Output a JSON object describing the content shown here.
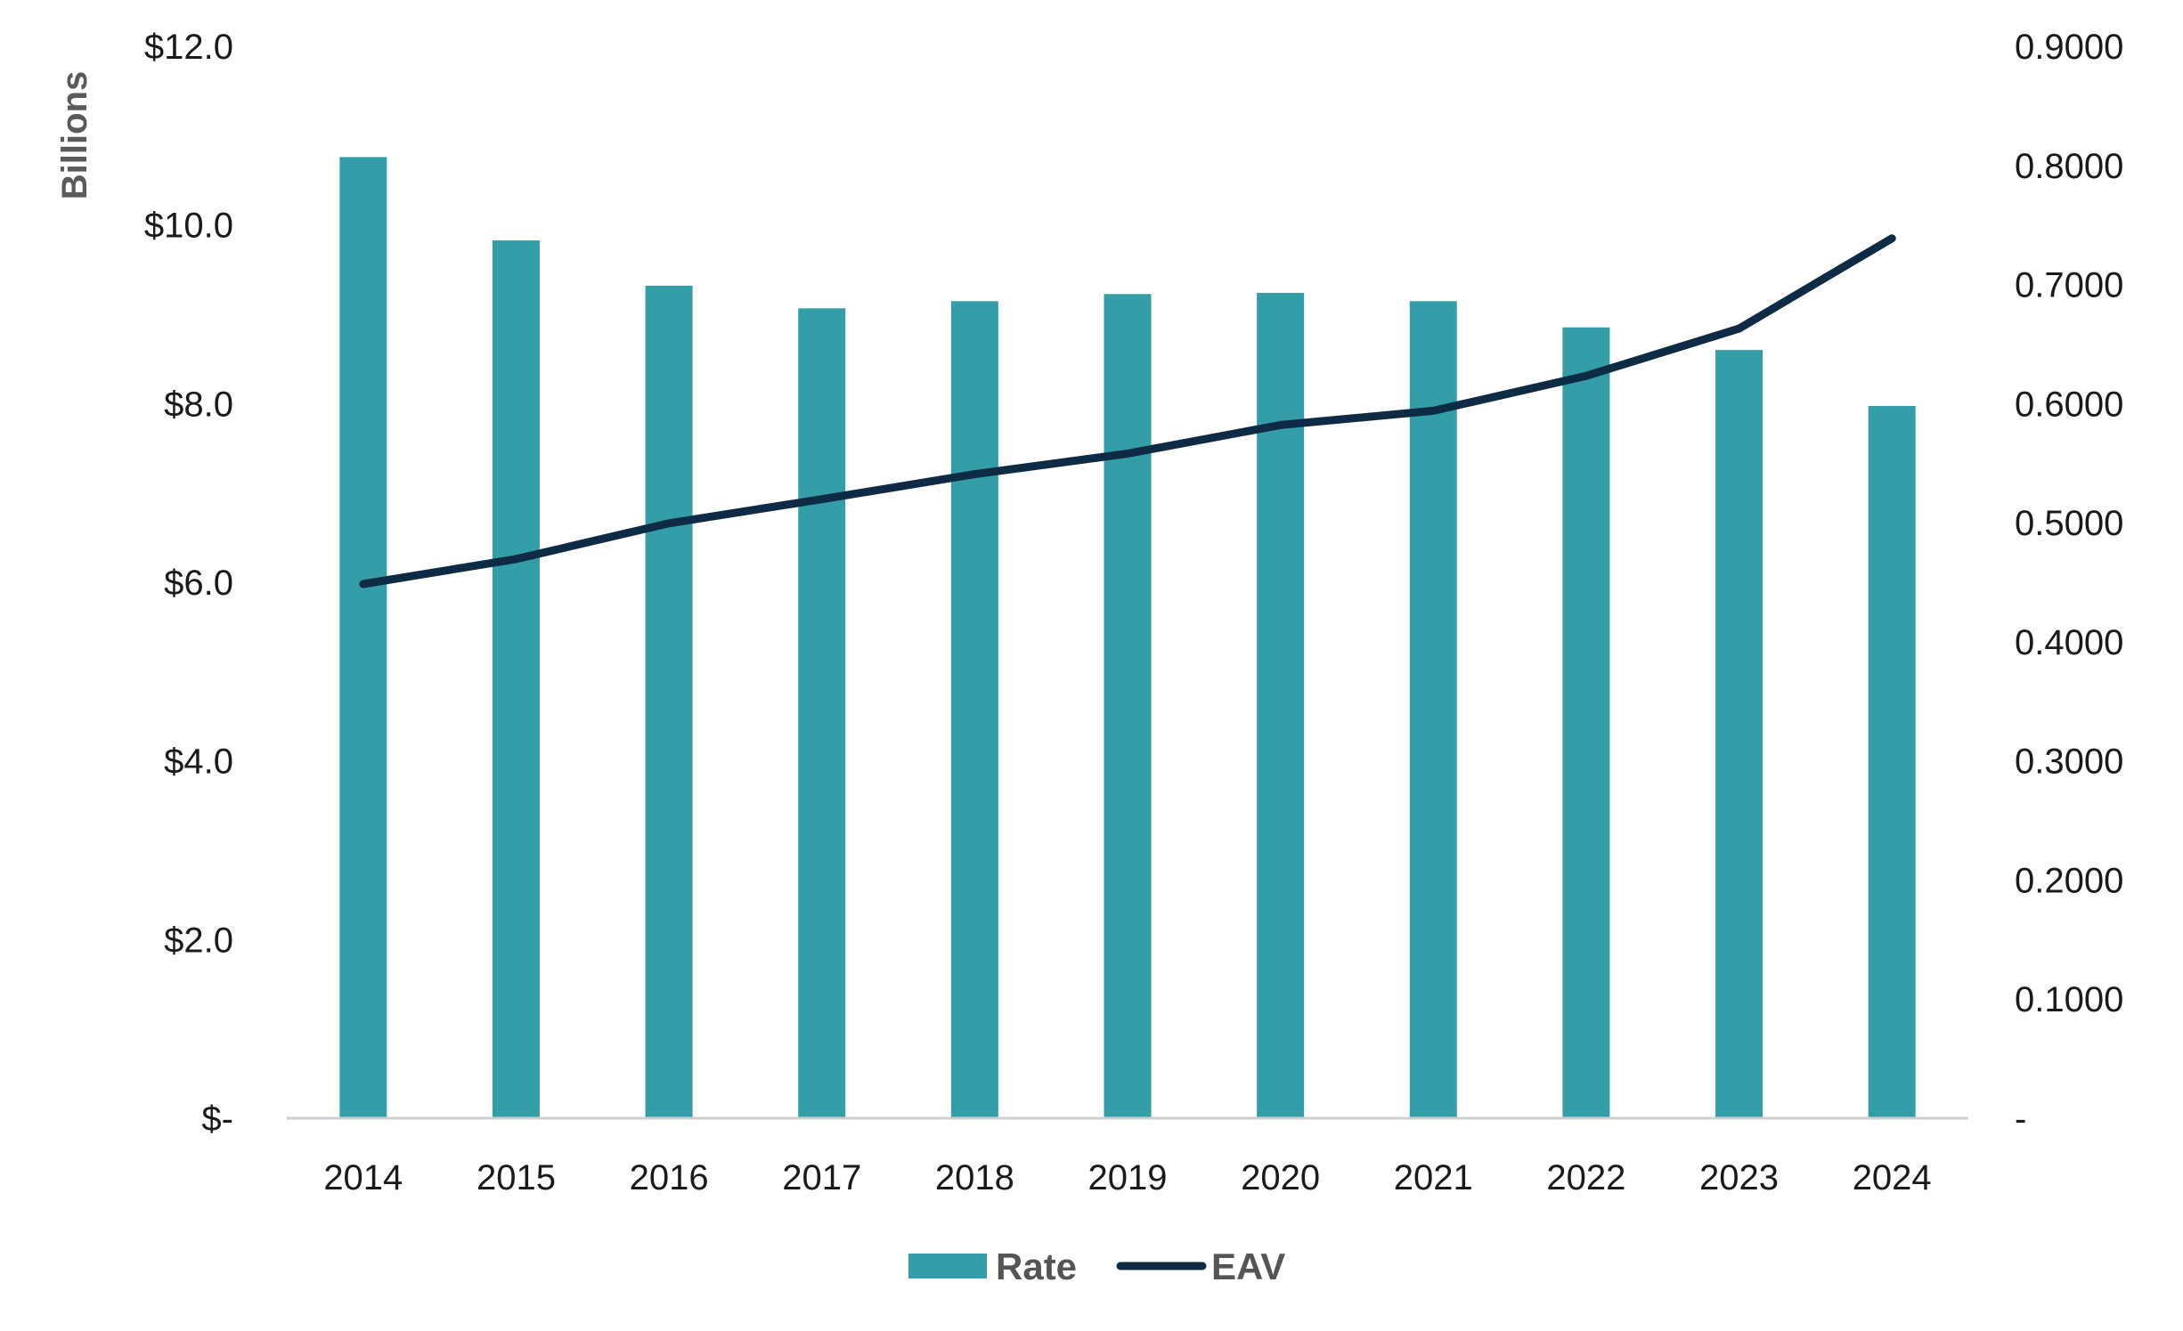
{
  "chart_data": {
    "type": "bar",
    "categories": [
      "2014",
      "2015",
      "2016",
      "2017",
      "2018",
      "2019",
      "2020",
      "2021",
      "2022",
      "2023",
      "2024"
    ],
    "series": [
      {
        "name": "Rate",
        "type": "bar",
        "axis": "right",
        "color": "#349ea8",
        "values": [
          0.807,
          0.737,
          0.699,
          0.68,
          0.686,
          0.692,
          0.693,
          0.686,
          0.664,
          0.645,
          0.598
        ]
      },
      {
        "name": "EAV",
        "type": "line",
        "axis": "left",
        "color": "#0d2b45",
        "values": [
          5.98,
          6.26,
          6.66,
          6.93,
          7.21,
          7.44,
          7.76,
          7.92,
          8.31,
          8.84,
          9.85
        ]
      }
    ],
    "ylabel": "Billions",
    "ylim": [
      0,
      12
    ],
    "y2lim": [
      0,
      0.9
    ],
    "yticks": [
      "$-",
      "$2.0",
      "$4.0",
      "$6.0",
      "$8.0",
      "$10.0",
      "$12.0"
    ],
    "y2ticks": [
      "-",
      "0.1000",
      "0.2000",
      "0.3000",
      "0.4000",
      "0.5000",
      "0.6000",
      "0.7000",
      "0.8000",
      "0.9000"
    ],
    "legend_position": "bottom",
    "grid": false
  }
}
